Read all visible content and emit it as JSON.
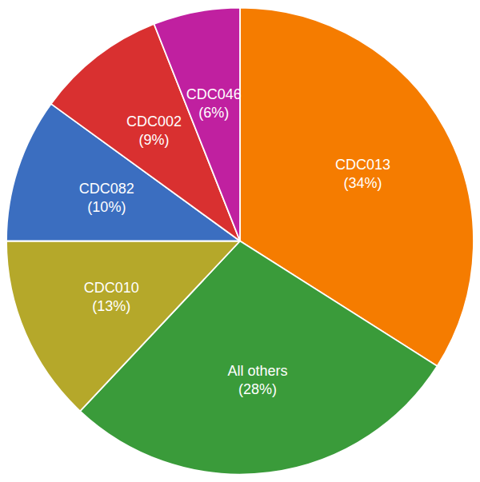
{
  "chart_data": {
    "type": "pie",
    "categories": [
      "CDC013",
      "All others",
      "CDC010",
      "CDC082",
      "CDC002",
      "CDC046"
    ],
    "values": [
      34,
      28,
      13,
      10,
      9,
      6
    ],
    "value_labels": [
      "(34%)",
      "(28%)",
      "(13%)",
      "(10%)",
      "(9%)",
      "(6%)"
    ],
    "colors": [
      "#F57C00",
      "#3A9B3A",
      "#B5A82A",
      "#3B6EC0",
      "#D93030",
      "#C020A0"
    ],
    "data_labels": true
  }
}
